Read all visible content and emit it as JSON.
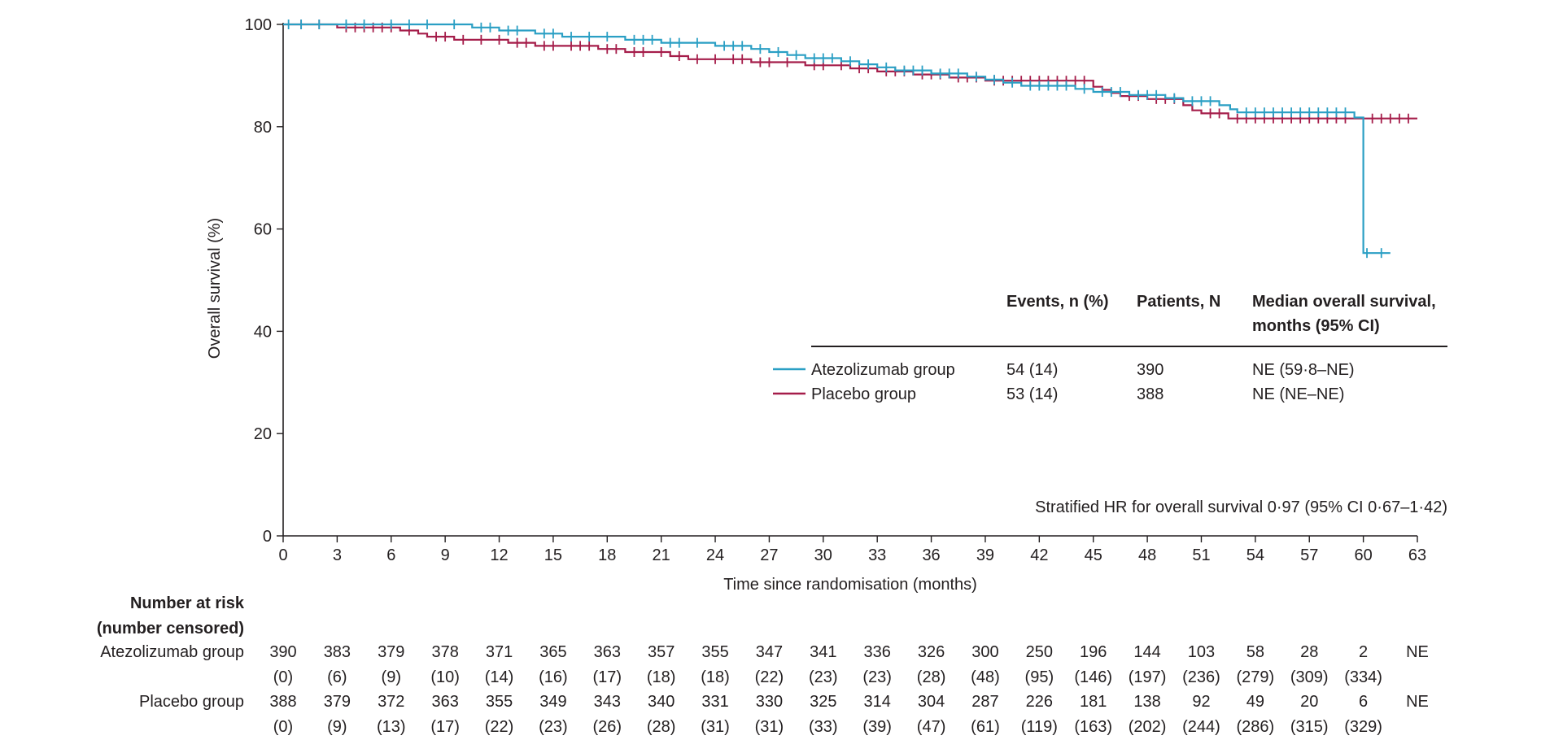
{
  "chart_data": {
    "type": "line",
    "subtype": "kaplan-meier",
    "xlabel": "Time since randomisation (months)",
    "ylabel": "Overall survival (%)",
    "xlim": [
      0,
      63
    ],
    "ylim": [
      0,
      100
    ],
    "x_ticks": [
      0,
      3,
      6,
      9,
      12,
      15,
      18,
      21,
      24,
      27,
      30,
      33,
      36,
      39,
      42,
      45,
      48,
      51,
      54,
      57,
      60,
      63
    ],
    "y_ticks": [
      0,
      20,
      40,
      60,
      80,
      100
    ],
    "grid": false,
    "series": [
      {
        "name": "Atezolizumab group",
        "color": "#2a9fc4",
        "points": [
          [
            0,
            100
          ],
          [
            10.5,
            100
          ],
          [
            10.5,
            99.4
          ],
          [
            12,
            99.4
          ],
          [
            12,
            98.8
          ],
          [
            14,
            98.8
          ],
          [
            14,
            98.2
          ],
          [
            15.5,
            98.2
          ],
          [
            15.5,
            97.6
          ],
          [
            19,
            97.6
          ],
          [
            19,
            97
          ],
          [
            21,
            97
          ],
          [
            21,
            96.4
          ],
          [
            24,
            96.4
          ],
          [
            24,
            95.8
          ],
          [
            26,
            95.8
          ],
          [
            26,
            95.2
          ],
          [
            27,
            95.2
          ],
          [
            27,
            94.6
          ],
          [
            28,
            94.6
          ],
          [
            28,
            94
          ],
          [
            29,
            94
          ],
          [
            29,
            93.4
          ],
          [
            31,
            93.4
          ],
          [
            31,
            92.8
          ],
          [
            32,
            92.8
          ],
          [
            32,
            92.2
          ],
          [
            33,
            92.2
          ],
          [
            33,
            91.6
          ],
          [
            34,
            91.6
          ],
          [
            34,
            91
          ],
          [
            36,
            91
          ],
          [
            36,
            90.4
          ],
          [
            38,
            90.4
          ],
          [
            38,
            89.8
          ],
          [
            39,
            89.8
          ],
          [
            39,
            89.2
          ],
          [
            40,
            89.2
          ],
          [
            40,
            88.6
          ],
          [
            41,
            88.6
          ],
          [
            41,
            88
          ],
          [
            44,
            88
          ],
          [
            44,
            87.4
          ],
          [
            45,
            87.4
          ],
          [
            45,
            86.8
          ],
          [
            47,
            86.8
          ],
          [
            47,
            86.2
          ],
          [
            49,
            86.2
          ],
          [
            49,
            85.6
          ],
          [
            50,
            85.6
          ],
          [
            50,
            85
          ],
          [
            52,
            85
          ],
          [
            52,
            84.2
          ],
          [
            52.6,
            84.2
          ],
          [
            52.6,
            83.4
          ],
          [
            53,
            83.4
          ],
          [
            53,
            82.8
          ],
          [
            59.5,
            82.8
          ],
          [
            59.5,
            81.8
          ],
          [
            60,
            81.8
          ],
          [
            60,
            55.3
          ],
          [
            61.5,
            55.3
          ]
        ],
        "censor_marks": [
          [
            0.3,
            100
          ],
          [
            1,
            100
          ],
          [
            2,
            100
          ],
          [
            3.5,
            100
          ],
          [
            4.5,
            100
          ],
          [
            6,
            100
          ],
          [
            7,
            100
          ],
          [
            8,
            100
          ],
          [
            9.5,
            100
          ],
          [
            11,
            99.4
          ],
          [
            11.5,
            99.4
          ],
          [
            12.5,
            98.8
          ],
          [
            13,
            98.8
          ],
          [
            14.5,
            98.2
          ],
          [
            15,
            98.2
          ],
          [
            16,
            97.6
          ],
          [
            17,
            97.6
          ],
          [
            18,
            97.6
          ],
          [
            19.5,
            97
          ],
          [
            20,
            97
          ],
          [
            20.5,
            97
          ],
          [
            21.5,
            96.4
          ],
          [
            22,
            96.4
          ],
          [
            23,
            96.4
          ],
          [
            24.5,
            95.8
          ],
          [
            25,
            95.8
          ],
          [
            25.5,
            95.8
          ],
          [
            26.5,
            95.2
          ],
          [
            27.5,
            94.6
          ],
          [
            28.5,
            94
          ],
          [
            29.5,
            93.4
          ],
          [
            30,
            93.4
          ],
          [
            30.5,
            93.4
          ],
          [
            31.5,
            92.8
          ],
          [
            32.5,
            92.2
          ],
          [
            33.5,
            91.6
          ],
          [
            34.5,
            91
          ],
          [
            35,
            91
          ],
          [
            35.5,
            91
          ],
          [
            36.5,
            90.4
          ],
          [
            37,
            90.4
          ],
          [
            37.5,
            90.4
          ],
          [
            38.5,
            89.8
          ],
          [
            39.5,
            89.2
          ],
          [
            40.5,
            88.6
          ],
          [
            41.5,
            88
          ],
          [
            42,
            88
          ],
          [
            42.5,
            88
          ],
          [
            43,
            88
          ],
          [
            43.5,
            88
          ],
          [
            44.5,
            87.4
          ],
          [
            45.5,
            86.8
          ],
          [
            46,
            86.8
          ],
          [
            46.5,
            86.8
          ],
          [
            47.5,
            86.2
          ],
          [
            48,
            86.2
          ],
          [
            48.5,
            86.2
          ],
          [
            49.5,
            85.6
          ],
          [
            50.5,
            85
          ],
          [
            51,
            85
          ],
          [
            51.5,
            85
          ],
          [
            53.5,
            82.8
          ],
          [
            54,
            82.8
          ],
          [
            54.5,
            82.8
          ],
          [
            55,
            82.8
          ],
          [
            55.5,
            82.8
          ],
          [
            56,
            82.8
          ],
          [
            56.5,
            82.8
          ],
          [
            57,
            82.8
          ],
          [
            57.5,
            82.8
          ],
          [
            58,
            82.8
          ],
          [
            58.5,
            82.8
          ],
          [
            59,
            82.8
          ],
          [
            60.2,
            55.3
          ],
          [
            61,
            55.3
          ]
        ]
      },
      {
        "name": "Placebo group",
        "color": "#a51d4a",
        "points": [
          [
            0,
            100
          ],
          [
            3,
            100
          ],
          [
            3,
            99.4
          ],
          [
            6.5,
            99.4
          ],
          [
            6.5,
            98.8
          ],
          [
            7.5,
            98.8
          ],
          [
            7.5,
            98.2
          ],
          [
            8,
            98.2
          ],
          [
            8,
            97.6
          ],
          [
            9.5,
            97.6
          ],
          [
            9.5,
            97
          ],
          [
            12.5,
            97
          ],
          [
            12.5,
            96.4
          ],
          [
            14,
            96.4
          ],
          [
            14,
            95.8
          ],
          [
            17.5,
            95.8
          ],
          [
            17.5,
            95.2
          ],
          [
            19,
            95.2
          ],
          [
            19,
            94.6
          ],
          [
            21.5,
            94.6
          ],
          [
            21.5,
            93.8
          ],
          [
            22.5,
            93.8
          ],
          [
            22.5,
            93.2
          ],
          [
            26,
            93.2
          ],
          [
            26,
            92.6
          ],
          [
            29,
            92.6
          ],
          [
            29,
            92
          ],
          [
            31.5,
            92
          ],
          [
            31.5,
            91.4
          ],
          [
            33,
            91.4
          ],
          [
            33,
            90.8
          ],
          [
            35,
            90.8
          ],
          [
            35,
            90.2
          ],
          [
            37,
            90.2
          ],
          [
            37,
            89.6
          ],
          [
            39,
            89.6
          ],
          [
            39,
            89
          ],
          [
            45,
            89
          ],
          [
            45,
            87.8
          ],
          [
            45.5,
            87.8
          ],
          [
            45.5,
            87.2
          ],
          [
            46,
            87.2
          ],
          [
            46,
            86.6
          ],
          [
            46.5,
            86.6
          ],
          [
            46.5,
            86
          ],
          [
            48,
            86
          ],
          [
            48,
            85.4
          ],
          [
            50,
            85.4
          ],
          [
            50,
            84.2
          ],
          [
            50.5,
            84.2
          ],
          [
            50.5,
            83.2
          ],
          [
            51,
            83.2
          ],
          [
            51,
            82.6
          ],
          [
            52.5,
            82.6
          ],
          [
            52.5,
            81.6
          ],
          [
            63,
            81.6
          ]
        ],
        "censor_marks": [
          [
            1,
            100
          ],
          [
            2,
            100
          ],
          [
            3.5,
            99.4
          ],
          [
            4,
            99.4
          ],
          [
            4.5,
            99.4
          ],
          [
            5,
            99.4
          ],
          [
            5.5,
            99.4
          ],
          [
            6,
            99.4
          ],
          [
            7,
            98.8
          ],
          [
            8.5,
            97.6
          ],
          [
            9,
            97.6
          ],
          [
            10,
            97
          ],
          [
            11,
            97
          ],
          [
            12,
            97
          ],
          [
            13,
            96.4
          ],
          [
            13.5,
            96.4
          ],
          [
            14.5,
            95.8
          ],
          [
            15,
            95.8
          ],
          [
            16,
            95.8
          ],
          [
            16.5,
            95.8
          ],
          [
            17,
            95.8
          ],
          [
            18,
            95.2
          ],
          [
            18.5,
            95.2
          ],
          [
            19.5,
            94.6
          ],
          [
            20,
            94.6
          ],
          [
            21,
            94.6
          ],
          [
            22,
            93.8
          ],
          [
            23,
            93.2
          ],
          [
            24,
            93.2
          ],
          [
            25,
            93.2
          ],
          [
            25.5,
            93.2
          ],
          [
            26.5,
            92.6
          ],
          [
            27,
            92.6
          ],
          [
            28,
            92.6
          ],
          [
            29.5,
            92
          ],
          [
            30,
            92
          ],
          [
            31,
            92
          ],
          [
            32,
            91.4
          ],
          [
            32.5,
            91.4
          ],
          [
            33.5,
            90.8
          ],
          [
            34,
            90.8
          ],
          [
            34.5,
            90.8
          ],
          [
            35.5,
            90.2
          ],
          [
            36,
            90.2
          ],
          [
            36.5,
            90.2
          ],
          [
            37.5,
            89.6
          ],
          [
            38,
            89.6
          ],
          [
            38.5,
            89.6
          ],
          [
            39.5,
            89
          ],
          [
            40,
            89
          ],
          [
            40.5,
            89
          ],
          [
            41,
            89
          ],
          [
            41.5,
            89
          ],
          [
            42,
            89
          ],
          [
            42.5,
            89
          ],
          [
            43,
            89
          ],
          [
            43.5,
            89
          ],
          [
            44,
            89
          ],
          [
            44.5,
            89
          ],
          [
            47,
            86
          ],
          [
            47.5,
            86
          ],
          [
            48.5,
            85.4
          ],
          [
            49,
            85.4
          ],
          [
            49.5,
            85.4
          ],
          [
            51.5,
            82.6
          ],
          [
            52,
            82.6
          ],
          [
            53,
            81.6
          ],
          [
            53.5,
            81.6
          ],
          [
            54,
            81.6
          ],
          [
            54.5,
            81.6
          ],
          [
            55,
            81.6
          ],
          [
            55.5,
            81.6
          ],
          [
            56,
            81.6
          ],
          [
            56.5,
            81.6
          ],
          [
            57,
            81.6
          ],
          [
            57.5,
            81.6
          ],
          [
            58,
            81.6
          ],
          [
            58.5,
            81.6
          ],
          [
            59,
            81.6
          ],
          [
            60.5,
            81.6
          ],
          [
            61,
            81.6
          ],
          [
            61.5,
            81.6
          ],
          [
            62,
            81.6
          ],
          [
            62.5,
            81.6
          ]
        ]
      }
    ],
    "legend": {
      "headers": [
        "Events, n (%)",
        "Patients, N",
        "Median overall survival,",
        "months (95% CI)"
      ],
      "rows": [
        {
          "name": "Atezolizumab group",
          "events": "54 (14)",
          "patients": "390",
          "median": "NE (59·8–NE)"
        },
        {
          "name": "Placebo group",
          "events": "53 (14)",
          "patients": "388",
          "median": "NE (NE–NE)"
        }
      ]
    },
    "annotation": "Stratified HR for overall survival 0·97 (95% CI 0·67–1·42)",
    "risk_table": {
      "title_line1": "Number at risk",
      "title_line2": "(number censored)",
      "rows": [
        {
          "label": "Atezolizumab group",
          "at_risk": [
            "390",
            "383",
            "379",
            "378",
            "371",
            "365",
            "363",
            "357",
            "355",
            "347",
            "341",
            "336",
            "326",
            "300",
            "250",
            "196",
            "144",
            "103",
            "58",
            "28",
            "2",
            "NE"
          ],
          "censored": [
            "(0)",
            "(6)",
            "(9)",
            "(10)",
            "(14)",
            "(16)",
            "(17)",
            "(18)",
            "(18)",
            "(22)",
            "(23)",
            "(23)",
            "(28)",
            "(48)",
            "(95)",
            "(146)",
            "(197)",
            "(236)",
            "(279)",
            "(309)",
            "(334)",
            ""
          ]
        },
        {
          "label": "Placebo group",
          "at_risk": [
            "388",
            "379",
            "372",
            "363",
            "355",
            "349",
            "343",
            "340",
            "331",
            "330",
            "325",
            "314",
            "304",
            "287",
            "226",
            "181",
            "138",
            "92",
            "49",
            "20",
            "6",
            "NE"
          ],
          "censored": [
            "(0)",
            "(9)",
            "(13)",
            "(17)",
            "(22)",
            "(23)",
            "(26)",
            "(28)",
            "(31)",
            "(31)",
            "(33)",
            "(39)",
            "(47)",
            "(61)",
            "(119)",
            "(163)",
            "(202)",
            "(244)",
            "(286)",
            "(315)",
            "(329)",
            ""
          ]
        }
      ]
    }
  }
}
